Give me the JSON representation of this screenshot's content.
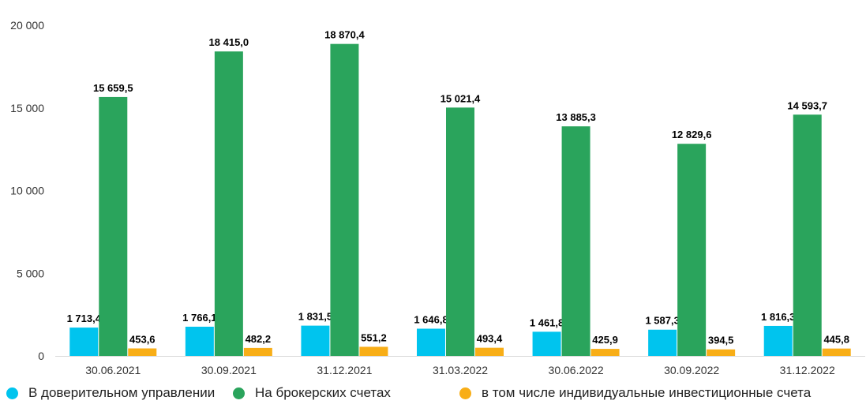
{
  "chart_data": {
    "type": "bar",
    "categories": [
      "30.06.2021",
      "30.09.2021",
      "31.12.2021",
      "31.03.2022",
      "30.06.2022",
      "30.09.2022",
      "31.12.2022"
    ],
    "series": [
      {
        "name": "В доверительном управлении",
        "color": "#00c4ee",
        "values": [
          1713.4,
          1766.1,
          1831.5,
          1646.8,
          1461.8,
          1587.3,
          1816.3
        ],
        "labels": [
          "1 713,4",
          "1 766,1",
          "1 831,5",
          "1 646,8",
          "1 461,8",
          "1 587,3",
          "1 816,3"
        ]
      },
      {
        "name": "На брокерских счетах",
        "color": "#2aa45c",
        "values": [
          15659.5,
          18415.0,
          18870.4,
          15021.4,
          13885.3,
          12829.6,
          14593.7
        ],
        "labels": [
          "15 659,5",
          "18 415,0",
          "18 870,4",
          "15 021,4",
          "13 885,3",
          "12 829,6",
          "14 593,7"
        ]
      },
      {
        "name": "в том числе индивидуальные инвестиционные счета",
        "color": "#f8ae17",
        "values": [
          453.6,
          482.2,
          551.2,
          493.4,
          425.9,
          394.5,
          445.8
        ],
        "labels": [
          "453,6",
          "482,2",
          "551,2",
          "493,4",
          "425,9",
          "394,5",
          "445,8"
        ]
      }
    ],
    "yticks": [
      0,
      5000,
      10000,
      15000,
      20000
    ],
    "ytick_labels": [
      "0",
      "5 000",
      "10 000",
      "15 000",
      "20 000"
    ],
    "ylim": [
      0,
      20000
    ],
    "grid": false,
    "legend_position": "bottom"
  }
}
